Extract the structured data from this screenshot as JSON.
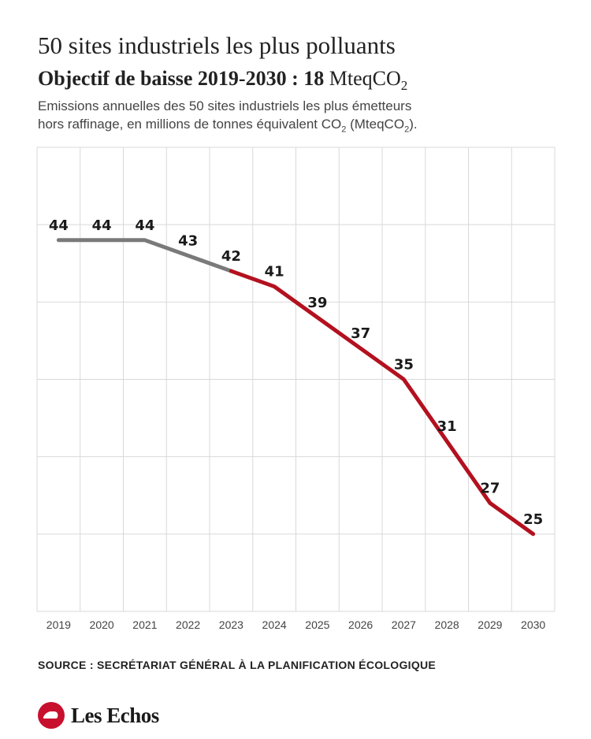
{
  "header": {
    "title": "50 sites industriels les plus polluants",
    "subtitle_bold": "Objectif de baisse 2019-2030 : 18",
    "subtitle_unit": "MteqCO",
    "subtitle_unit_sub": "2",
    "desc_line1": "Emissions annuelles des 50 sites industriels les plus émetteurs",
    "desc_line2a": "hors raffinage, en millions de tonnes équivalent CO",
    "desc_sub1": "2",
    "desc_line2b": " (MteqCO",
    "desc_sub2": "2",
    "desc_line2c": ")."
  },
  "chart_data": {
    "type": "line",
    "x": [
      "2019",
      "2020",
      "2021",
      "2022",
      "2023",
      "2024",
      "2025",
      "2026",
      "2027",
      "2028",
      "2029",
      "2030"
    ],
    "values": [
      44,
      44,
      44,
      43,
      42,
      41,
      39,
      37,
      35,
      31,
      27,
      25
    ],
    "series": [
      {
        "x_range": [
          "2019",
          "2023"
        ],
        "color": "#7a7a7a"
      },
      {
        "x_range": [
          "2023",
          "2030"
        ],
        "color": "#b3111f"
      }
    ],
    "ylim": [
      20,
      50
    ],
    "grid": true
  },
  "footer": {
    "source": "SOURCE : SECRÉTARIAT GÉNÉRAL À LA PLANIFICATION ÉCOLOGIQUE",
    "brand": "Les Echos"
  }
}
